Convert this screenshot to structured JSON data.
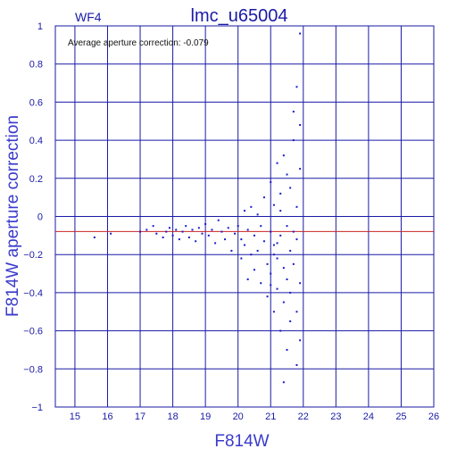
{
  "chart_data": {
    "type": "scatter",
    "title": "lmc_u65004",
    "subtitle": "WF4",
    "xlabel": "F814W",
    "ylabel": "F814W aperture correction",
    "annotation": "Average aperture correction:  -0.079",
    "xlim": [
      14.4,
      26
    ],
    "ylim": [
      -1,
      1
    ],
    "x_ticks": [
      15,
      16,
      17,
      18,
      19,
      20,
      21,
      22,
      23,
      24,
      25,
      26
    ],
    "y_ticks": [
      -1,
      -0.8,
      -0.6,
      -0.4,
      -0.2,
      0,
      0.2,
      0.4,
      0.6,
      0.8,
      1
    ],
    "y_tick_labels": [
      "−1",
      "−0.8",
      "−0.6",
      "−0.4",
      "−0.2",
      "0",
      "0.2",
      "0.4",
      "0.6",
      "0.8",
      "1"
    ],
    "grid": true,
    "reference_lines": [
      {
        "axis": "y",
        "value": -0.079,
        "color": "#cc2222"
      },
      {
        "axis": "y",
        "value": 0,
        "color": "#1a1aa6"
      }
    ],
    "point_color": "#1a1acc",
    "points": [
      [
        15.6,
        -0.11
      ],
      [
        16.1,
        -0.09
      ],
      [
        17.0,
        -0.08
      ],
      [
        17.2,
        -0.07
      ],
      [
        17.4,
        -0.05
      ],
      [
        17.5,
        -0.09
      ],
      [
        17.7,
        -0.11
      ],
      [
        17.8,
        -0.08
      ],
      [
        17.9,
        -0.06
      ],
      [
        18.0,
        -0.1
      ],
      [
        18.1,
        -0.07
      ],
      [
        18.2,
        -0.12
      ],
      [
        18.3,
        -0.08
      ],
      [
        18.4,
        -0.05
      ],
      [
        18.5,
        -0.11
      ],
      [
        18.6,
        -0.07
      ],
      [
        18.7,
        -0.13
      ],
      [
        18.8,
        -0.06
      ],
      [
        18.9,
        -0.09
      ],
      [
        19.0,
        -0.04
      ],
      [
        19.1,
        -0.1
      ],
      [
        19.2,
        -0.07
      ],
      [
        19.3,
        -0.14
      ],
      [
        19.4,
        -0.02
      ],
      [
        19.5,
        -0.08
      ],
      [
        19.6,
        -0.12
      ],
      [
        19.7,
        -0.06
      ],
      [
        19.8,
        -0.18
      ],
      [
        19.9,
        -0.09
      ],
      [
        20.0,
        -0.05
      ],
      [
        20.1,
        -0.12
      ],
      [
        20.1,
        -0.22
      ],
      [
        20.2,
        0.03
      ],
      [
        20.2,
        -0.15
      ],
      [
        20.3,
        -0.33
      ],
      [
        20.3,
        -0.07
      ],
      [
        20.4,
        0.05
      ],
      [
        20.4,
        -0.2
      ],
      [
        20.5,
        -0.1
      ],
      [
        20.5,
        -0.28
      ],
      [
        20.6,
        0.01
      ],
      [
        20.6,
        -0.18
      ],
      [
        20.7,
        -0.05
      ],
      [
        20.7,
        -0.35
      ],
      [
        20.8,
        -0.13
      ],
      [
        20.8,
        0.1
      ],
      [
        20.9,
        -0.25
      ],
      [
        20.9,
        -0.42
      ],
      [
        21.0,
        -0.08
      ],
      [
        21.0,
        0.18
      ],
      [
        21.0,
        -0.3
      ],
      [
        21.1,
        -0.15
      ],
      [
        21.1,
        -0.5
      ],
      [
        21.1,
        0.06
      ],
      [
        21.2,
        -0.22
      ],
      [
        21.2,
        0.28
      ],
      [
        21.2,
        -0.38
      ],
      [
        21.3,
        -0.1
      ],
      [
        21.3,
        -0.6
      ],
      [
        21.3,
        0.12
      ],
      [
        21.4,
        -0.27
      ],
      [
        21.4,
        0.32
      ],
      [
        21.4,
        -0.45
      ],
      [
        21.5,
        -0.05
      ],
      [
        21.5,
        0.22
      ],
      [
        21.5,
        -0.33
      ],
      [
        21.5,
        -0.7
      ],
      [
        21.6,
        -0.18
      ],
      [
        21.6,
        0.15
      ],
      [
        21.6,
        -0.4
      ],
      [
        21.7,
        0.4
      ],
      [
        21.7,
        -0.25
      ],
      [
        21.7,
        0.55
      ],
      [
        21.8,
        -0.12
      ],
      [
        21.8,
        0.68
      ],
      [
        21.8,
        -0.5
      ],
      [
        21.8,
        0.05
      ],
      [
        21.9,
        0.96
      ],
      [
        21.9,
        -0.35
      ],
      [
        21.9,
        0.48
      ],
      [
        21.9,
        -0.65
      ],
      [
        21.8,
        -0.78
      ],
      [
        21.9,
        0.25
      ],
      [
        21.7,
        -0.08
      ],
      [
        21.6,
        -0.55
      ],
      [
        21.4,
        -0.87
      ],
      [
        21.3,
        0.03
      ],
      [
        21.2,
        -0.14
      ],
      [
        21.1,
        -0.2
      ],
      [
        21.0,
        -0.36
      ]
    ]
  }
}
